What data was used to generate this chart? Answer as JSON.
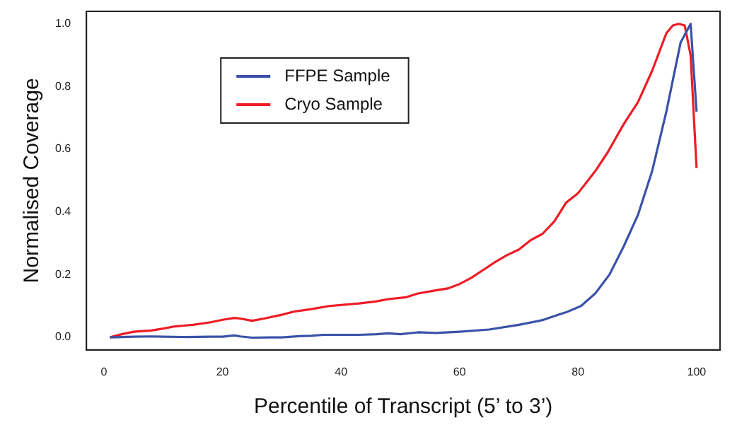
{
  "chart_data": {
    "type": "line",
    "xlabel": "Percentile of Transcript (5’ to 3’)",
    "ylabel": "Normalised Coverage",
    "xlim": [
      -2.96,
      103.96
    ],
    "xticks": [
      0,
      20,
      40,
      60,
      80,
      100
    ],
    "ylim": [
      -0.04,
      1.04
    ],
    "yticks": [
      {
        "value": 0,
        "label": "0.0"
      },
      0.2,
      0.4,
      0.6,
      0.8,
      {
        "value": 1,
        "label": "1.0"
      }
    ],
    "grid": false,
    "legend": "top left",
    "marker": "none",
    "line_style": "solid",
    "series": [
      {
        "name": "FFPE Sample",
        "color": "#3a52a8",
        "x": [
          1,
          3,
          5,
          8,
          10,
          14,
          18,
          20,
          22,
          23,
          25,
          28,
          30,
          33,
          35,
          37,
          40,
          43,
          46,
          48,
          50,
          53,
          56,
          60,
          65,
          70,
          74,
          76,
          78,
          80.5,
          82.9,
          85.3,
          87.7,
          90.1,
          92.5,
          94.9,
          97.3,
          99,
          100
        ],
        "values": [
          0,
          0.001,
          0.002,
          0.003,
          0.002,
          0.001,
          0.002,
          0.002,
          0.006,
          0.003,
          -0.001,
          0,
          0,
          0.004,
          0.005,
          0.008,
          0.008,
          0.008,
          0.01,
          0.013,
          0.01,
          0.016,
          0.014,
          0.018,
          0.025,
          0.04,
          0.055,
          0.068,
          0.08,
          0.1,
          0.14,
          0.2,
          0.29,
          0.39,
          0.53,
          0.72,
          0.94,
          1.0,
          0.72
        ]
      },
      {
        "name": "Cryo Sample",
        "color": "#ee1c25",
        "x": [
          1,
          3,
          5,
          8,
          10,
          12,
          15,
          18,
          20,
          22,
          23,
          25,
          27,
          30,
          32,
          35,
          38,
          40,
          43,
          46,
          48,
          51,
          53,
          56,
          58,
          60,
          62,
          64,
          66,
          68,
          70,
          72,
          74,
          76,
          78,
          80,
          82.9,
          85,
          87.7,
          90.1,
          92.5,
          94.9,
          96,
          97,
          98,
          99,
          100
        ],
        "values": [
          0,
          0.01,
          0.018,
          0.022,
          0.028,
          0.035,
          0.04,
          0.048,
          0.056,
          0.062,
          0.06,
          0.053,
          0.06,
          0.072,
          0.082,
          0.09,
          0.1,
          0.103,
          0.108,
          0.115,
          0.122,
          0.128,
          0.14,
          0.15,
          0.156,
          0.17,
          0.19,
          0.215,
          0.24,
          0.262,
          0.28,
          0.31,
          0.33,
          0.37,
          0.43,
          0.46,
          0.53,
          0.59,
          0.68,
          0.75,
          0.85,
          0.97,
          0.995,
          1.0,
          0.995,
          0.9,
          0.54
        ]
      }
    ]
  }
}
